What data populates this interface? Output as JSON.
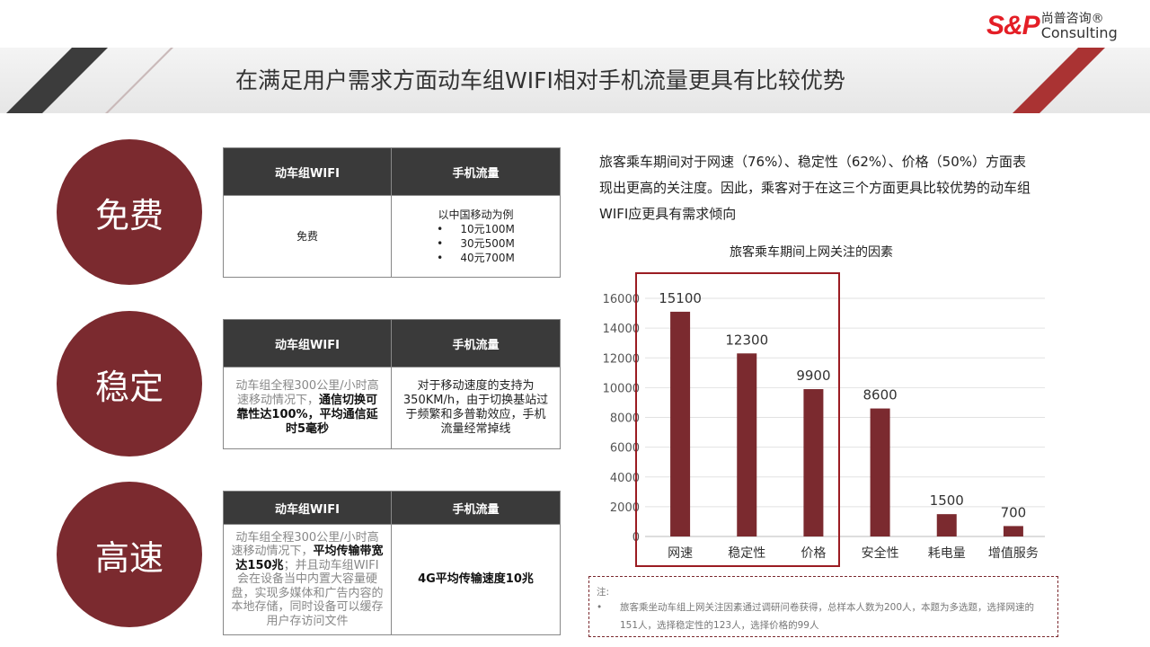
{
  "header": {
    "title": "在满足用户需求方面动车组WIFI相对手机流量更具有比较优势",
    "logo": {
      "mark": "S&P",
      "cn": "尚普咨询®",
      "en": "Consulting"
    }
  },
  "sections": [
    {
      "circle": "免费",
      "col1": "动车组WIFI",
      "col2": "手机流量",
      "left": [
        "免费"
      ],
      "right": {
        "intro": "以中国移动为例",
        "bullets": [
          "10元100M",
          "30元500M",
          "40元700M"
        ]
      }
    },
    {
      "circle": "稳定",
      "col1": "动车组WIFI",
      "col2": "手机流量",
      "left_gray": "动车组全程300公里/小时高速移动情况下，",
      "left_bold": "通信切换可靠性达100%，平均通信延时5毫秒",
      "right": "对于移动速度的支持为350KM/h，由于切换基站过于频繁和多普勒效应，手机流量经常掉线"
    },
    {
      "circle": "高速",
      "col1": "动车组WIFI",
      "col2": "手机流量",
      "left_gray1": "动车组全程300公里/小时高速移动情况下，",
      "left_bold": "平均传输带宽达150兆",
      "left_gray2": "；并且动车组WIFI会在设备当中内置大容量硬盘，实现多媒体和广告内容的本地存储，同时设备可以缓存用户存访问文件",
      "right": "4G平均传输速度10兆"
    }
  ],
  "description": "旅客乘车期间对于网速（76%）、稳定性（62%）、价格（50%）方面表现出更高的关注度。因此，乘客对于在这三个方面更具比较优势的动车组WIFI应更具有需求倾向",
  "chart_data": {
    "type": "bar",
    "title": "旅客乘车期间上网关注的因素",
    "categories": [
      "网速",
      "稳定性",
      "价格",
      "安全性",
      "耗电量",
      "增值服务"
    ],
    "values": [
      15100,
      12300,
      9900,
      8600,
      1500,
      700
    ],
    "ylim": [
      0,
      16000
    ],
    "yticks": [
      0,
      2000,
      4000,
      6000,
      8000,
      10000,
      12000,
      14000,
      16000
    ],
    "grid": true,
    "bar_color": "#7b2a2f",
    "highlight": [
      "网速",
      "稳定性",
      "价格"
    ]
  },
  "note": {
    "label": "注:",
    "bullet": "旅客乘坐动车组上网关注因素通过调研问卷获得，总样本人数为200人，本题为多选题，选择网速的151人，选择稳定性的123人，选择价格的99人"
  }
}
